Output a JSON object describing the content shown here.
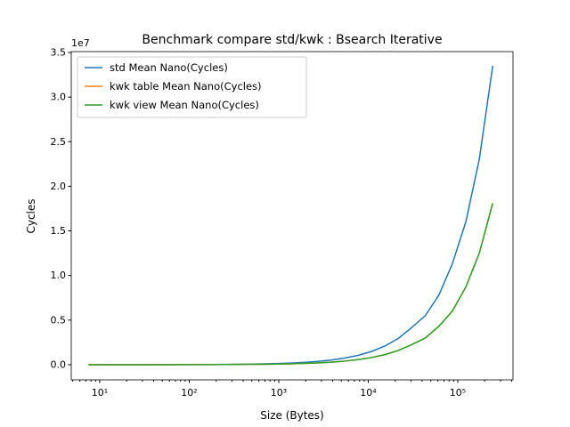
{
  "chart_data": {
    "type": "line",
    "title": "Benchmark compare std/kwk : Bsearch Iterative",
    "x_label": "Size (Bytes)",
    "y_label": "Cycles",
    "y_offset_label": "1e7",
    "x_scale": "log",
    "legend": "upper left",
    "x": [
      7.5,
      10.6,
      15,
      21.2,
      30,
      42.4,
      60,
      84.9,
      120,
      169.7,
      240,
      339.4,
      480,
      678.8,
      960,
      1357.6,
      1920,
      2715.3,
      3840,
      5430.6,
      7680,
      10861,
      15360,
      21722,
      30720,
      43445,
      61440,
      86889,
      122880,
      173778,
      245760
    ],
    "series": [
      {
        "name": "std Mean Nano(Cycles)",
        "color": "#1f77b4",
        "values": [
          0,
          0,
          0,
          0,
          0,
          0.001,
          0.001,
          0.001,
          0.002,
          0.002,
          0.003,
          0.005,
          0.007,
          0.009,
          0.013,
          0.018,
          0.026,
          0.037,
          0.052,
          0.074,
          0.104,
          0.148,
          0.209,
          0.295,
          0.418,
          0.55,
          0.78,
          1.13,
          1.6,
          2.3,
          3.35
        ]
      },
      {
        "name": "kwk table Mean Nano(Cycles)",
        "color": "#ff7f0e",
        "values": [
          0,
          0,
          0,
          0,
          0,
          0,
          0,
          0.001,
          0.001,
          0.001,
          0.002,
          0.003,
          0.004,
          0.005,
          0.007,
          0.01,
          0.014,
          0.02,
          0.028,
          0.04,
          0.057,
          0.08,
          0.113,
          0.16,
          0.226,
          0.3,
          0.43,
          0.6,
          0.87,
          1.25,
          1.81
        ]
      },
      {
        "name": "kwk view Mean Nano(Cycles)",
        "color": "#2ca02c",
        "values": [
          0,
          0,
          0,
          0,
          0,
          0,
          0,
          0.001,
          0.001,
          0.001,
          0.002,
          0.003,
          0.004,
          0.005,
          0.007,
          0.01,
          0.014,
          0.02,
          0.028,
          0.04,
          0.057,
          0.08,
          0.113,
          0.16,
          0.226,
          0.3,
          0.43,
          0.6,
          0.87,
          1.25,
          1.81
        ]
      }
    ],
    "xlim": [
      4.81,
      414000
    ],
    "xticks": [
      {
        "value": 10,
        "label": "10¹"
      },
      {
        "value": 100,
        "label": "10²"
      },
      {
        "value": 1000,
        "label": "10³"
      },
      {
        "value": 10000,
        "label": "10⁴"
      },
      {
        "value": 100000,
        "label": "10⁵"
      }
    ],
    "xminorticks": [
      5,
      6,
      7,
      8,
      9,
      20,
      30,
      40,
      50,
      60,
      70,
      80,
      90,
      200,
      300,
      400,
      500,
      600,
      700,
      800,
      900,
      2000,
      3000,
      4000,
      5000,
      6000,
      7000,
      8000,
      9000,
      20000,
      30000,
      40000,
      50000,
      60000,
      70000,
      80000,
      90000,
      200000,
      300000,
      400000
    ],
    "ylim": [
      -0.17,
      3.51
    ],
    "yticks": [
      {
        "value": 0,
        "label": "0.0"
      },
      {
        "value": 0.5,
        "label": "0.5"
      },
      {
        "value": 1,
        "label": "1.0"
      },
      {
        "value": 1.5,
        "label": "1.5"
      },
      {
        "value": 2,
        "label": "2.0"
      },
      {
        "value": 2.5,
        "label": "2.5"
      },
      {
        "value": 3,
        "label": "3.0"
      },
      {
        "value": 3.5,
        "label": "3.5"
      }
    ]
  }
}
